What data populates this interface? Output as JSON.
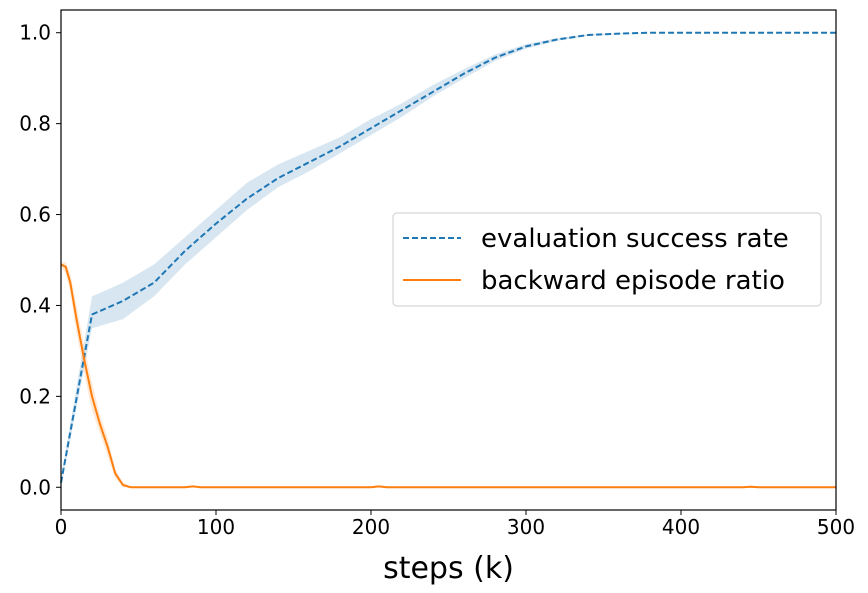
{
  "chart_data": {
    "type": "line",
    "title": "",
    "xlabel": "steps (k)",
    "ylabel": "",
    "xlim": [
      0,
      500
    ],
    "ylim": [
      -0.05,
      1.05
    ],
    "xticks": [
      0,
      100,
      200,
      300,
      400,
      500
    ],
    "yticks": [
      0.0,
      0.2,
      0.4,
      0.6,
      0.8,
      1.0
    ],
    "xtick_labels": [
      "0",
      "100",
      "200",
      "300",
      "400",
      "500"
    ],
    "ytick_labels": [
      "0.0",
      "0.2",
      "0.4",
      "0.6",
      "0.8",
      "1.0"
    ],
    "grid": false,
    "legend_position": "center-right",
    "series": [
      {
        "name": "evaluation success rate",
        "color": "#1f77b4",
        "style": "dashed",
        "x": [
          0,
          20,
          40,
          60,
          80,
          100,
          120,
          140,
          160,
          180,
          200,
          220,
          240,
          260,
          280,
          300,
          320,
          340,
          360,
          380,
          400,
          420,
          440,
          460,
          480,
          500
        ],
        "y": [
          0.01,
          0.38,
          0.41,
          0.45,
          0.52,
          0.58,
          0.635,
          0.68,
          0.715,
          0.75,
          0.79,
          0.83,
          0.87,
          0.91,
          0.945,
          0.97,
          0.985,
          0.995,
          0.998,
          1.0,
          1.0,
          1.0,
          1.0,
          1.0,
          1.0,
          1.0
        ],
        "y_low": [
          0.0,
          0.35,
          0.37,
          0.42,
          0.49,
          0.55,
          0.61,
          0.66,
          0.695,
          0.735,
          0.775,
          0.815,
          0.86,
          0.9,
          0.938,
          0.965,
          0.982,
          0.993,
          0.997,
          1.0,
          1.0,
          1.0,
          1.0,
          1.0,
          1.0,
          1.0
        ],
        "y_high": [
          0.02,
          0.42,
          0.45,
          0.49,
          0.55,
          0.61,
          0.67,
          0.71,
          0.74,
          0.77,
          0.81,
          0.845,
          0.885,
          0.92,
          0.952,
          0.975,
          0.988,
          0.997,
          0.999,
          1.0,
          1.0,
          1.0,
          1.0,
          1.0,
          1.0,
          1.0
        ]
      },
      {
        "name": "backward episode ratio",
        "color": "#ff7f0e",
        "style": "solid",
        "x": [
          0,
          3,
          6,
          10,
          15,
          20,
          25,
          30,
          35,
          40,
          45,
          50,
          60,
          80,
          85,
          90,
          100,
          200,
          205,
          210,
          220,
          300,
          400,
          440,
          445,
          450,
          500
        ],
        "y": [
          0.49,
          0.485,
          0.45,
          0.37,
          0.28,
          0.2,
          0.14,
          0.09,
          0.03,
          0.005,
          0.0,
          0.0,
          0.0,
          0.0,
          0.002,
          0.0,
          0.0,
          0.0,
          0.002,
          0.0,
          0.0,
          0.0,
          0.0,
          0.0,
          0.001,
          0.0,
          0.0
        ],
        "y_low": [
          0.485,
          0.47,
          0.43,
          0.34,
          0.25,
          0.17,
          0.12,
          0.07,
          0.02,
          0.0,
          0.0,
          0.0,
          0.0,
          0.0,
          0.0,
          0.0,
          0.0,
          0.0,
          0.0,
          0.0,
          0.0,
          0.0,
          0.0,
          0.0,
          0.0,
          0.0,
          0.0
        ],
        "y_high": [
          0.495,
          0.495,
          0.47,
          0.4,
          0.31,
          0.23,
          0.16,
          0.11,
          0.04,
          0.01,
          0.002,
          0.0,
          0.0,
          0.0,
          0.003,
          0.0,
          0.0,
          0.0,
          0.003,
          0.0,
          0.0,
          0.0,
          0.0,
          0.0,
          0.002,
          0.0,
          0.0
        ]
      }
    ]
  }
}
